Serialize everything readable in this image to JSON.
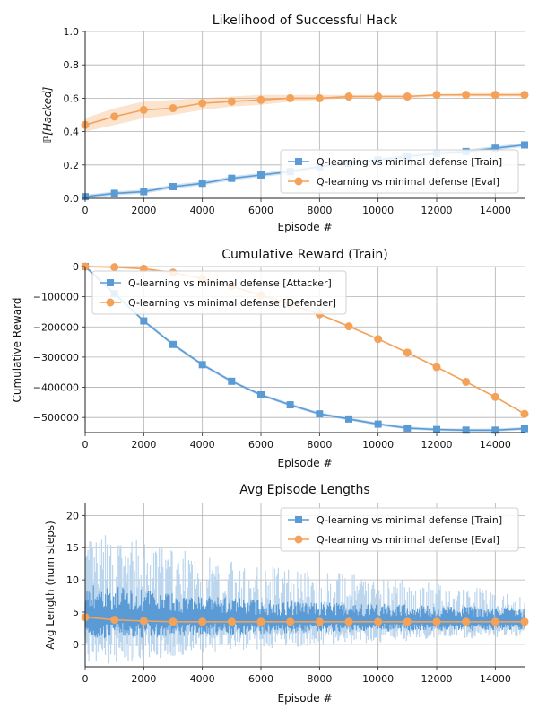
{
  "chart_data": [
    {
      "type": "line",
      "title": "Likelihood of Successful Hack",
      "xlabel": "Episode #",
      "ylabel": "ℙ[Hacked]",
      "xlim": [
        0,
        15000
      ],
      "ylim": [
        0,
        1.0
      ],
      "xticks": [
        "0",
        "2000",
        "4000",
        "6000",
        "8000",
        "10000",
        "12000",
        "14000"
      ],
      "yticks": [
        "0.0",
        "0.2",
        "0.4",
        "0.6",
        "0.8",
        "1.0"
      ],
      "grid": true,
      "legend_position": "lower-right",
      "x": [
        0,
        1000,
        2000,
        3000,
        4000,
        5000,
        6000,
        7000,
        8000,
        9000,
        10000,
        11000,
        12000,
        13000,
        14000,
        15000
      ],
      "series": [
        {
          "name": "Q-learning vs minimal defense [Train]",
          "color": "#5b9bd5",
          "marker": "square",
          "values": [
            0.01,
            0.03,
            0.04,
            0.07,
            0.09,
            0.12,
            0.14,
            0.16,
            0.19,
            0.21,
            0.23,
            0.25,
            0.27,
            0.28,
            0.3,
            0.32
          ],
          "band": 0.012
        },
        {
          "name": "Q-learning vs minimal defense [Eval]",
          "color": "#f4a259",
          "marker": "circle",
          "values": [
            0.44,
            0.49,
            0.53,
            0.54,
            0.57,
            0.58,
            0.59,
            0.6,
            0.6,
            0.61,
            0.61,
            0.61,
            0.62,
            0.62,
            0.62,
            0.62
          ],
          "band_low": [
            0.4,
            0.44,
            0.48,
            0.5,
            0.53,
            0.55,
            0.56,
            0.58,
            0.59,
            0.6,
            0.6,
            0.6,
            0.61,
            0.61,
            0.61,
            0.61
          ],
          "band_high": [
            0.48,
            0.54,
            0.58,
            0.59,
            0.6,
            0.61,
            0.62,
            0.62,
            0.62,
            0.62,
            0.62,
            0.62,
            0.62,
            0.63,
            0.63,
            0.63
          ]
        }
      ]
    },
    {
      "type": "line",
      "title": "Cumulative Reward (Train)",
      "xlabel": "Episode #",
      "ylabel": "Cumulative Reward",
      "xlim": [
        0,
        15000
      ],
      "ylim": [
        -550000,
        0
      ],
      "xticks": [
        "0",
        "2000",
        "4000",
        "6000",
        "8000",
        "10000",
        "12000",
        "14000"
      ],
      "yticks": [
        "0",
        "−100000",
        "−200000",
        "−300000",
        "−400000",
        "−500000"
      ],
      "grid": true,
      "legend_position": "top-left",
      "x": [
        0,
        1000,
        2000,
        3000,
        4000,
        5000,
        6000,
        7000,
        8000,
        9000,
        10000,
        11000,
        12000,
        13000,
        14000,
        15000
      ],
      "series": [
        {
          "name": "Q-learning vs minimal defense [Attacker]",
          "color": "#5b9bd5",
          "marker": "square",
          "values": [
            0,
            -90000,
            -180000,
            -258000,
            -325000,
            -380000,
            -425000,
            -458000,
            -488000,
            -505000,
            -522000,
            -535000,
            -540000,
            -542000,
            -542000,
            -537000
          ],
          "band": 5000
        },
        {
          "name": "Q-learning vs minimal defense [Defender]",
          "color": "#f4a259",
          "marker": "circle",
          "values": [
            0,
            -2000,
            -7000,
            -20000,
            -40000,
            -65000,
            -95000,
            -125000,
            -158000,
            -198000,
            -240000,
            -285000,
            -333000,
            -382000,
            -432000,
            -488000
          ],
          "band": 3000
        }
      ]
    },
    {
      "type": "line",
      "title": "Avg Episode Lengths",
      "xlabel": "Episode #",
      "ylabel": "Avg Length (num steps)",
      "xlim": [
        0,
        15000
      ],
      "ylim": [
        -3.5,
        22
      ],
      "xticks": [
        "0",
        "2000",
        "4000",
        "6000",
        "8000",
        "10000",
        "12000",
        "14000"
      ],
      "yticks": [
        "0",
        "5",
        "10",
        "15",
        "20"
      ],
      "grid": true,
      "legend_position": "top-right",
      "x": [
        0,
        1000,
        2000,
        3000,
        4000,
        5000,
        6000,
        7000,
        8000,
        9000,
        10000,
        11000,
        12000,
        13000,
        14000,
        15000
      ],
      "series": [
        {
          "name": "Q-learning vs minimal defense [Train]",
          "color": "#5b9bd5",
          "marker": "square",
          "noisy": true,
          "mean_values": [
            4.5,
            4.4,
            4.3,
            4.2,
            4.1,
            4.0,
            3.9,
            3.9,
            3.8,
            3.8,
            3.7,
            3.7,
            3.6,
            3.6,
            3.6,
            3.5
          ],
          "inner_high": [
            9.5,
            9.0,
            8.5,
            8.0,
            7.5,
            7.3,
            7.0,
            6.8,
            6.6,
            6.5,
            6.3,
            6.2,
            6.0,
            5.9,
            5.8,
            5.6
          ],
          "inner_low": [
            0.5,
            0.8,
            1.0,
            1.2,
            1.4,
            1.5,
            1.6,
            1.7,
            1.8,
            1.9,
            2.0,
            2.0,
            2.1,
            2.1,
            2.2,
            2.2
          ],
          "outer_high": [
            17,
            17,
            16,
            15,
            14,
            13,
            12.5,
            12,
            11.5,
            11,
            10.5,
            10,
            9.5,
            9,
            8.5,
            7.5
          ],
          "outer_low": [
            -3,
            -3,
            -2.5,
            -2,
            -1.5,
            -1,
            -0.8,
            -0.5,
            -0.3,
            0,
            0.3,
            0.5,
            0.7,
            0.8,
            1,
            1.2
          ]
        },
        {
          "name": "Q-learning vs minimal defense [Eval]",
          "color": "#f4a259",
          "marker": "circle",
          "values": [
            4.2,
            3.8,
            3.6,
            3.5,
            3.5,
            3.5,
            3.5,
            3.5,
            3.5,
            3.5,
            3.5,
            3.5,
            3.5,
            3.5,
            3.5,
            3.5
          ]
        }
      ]
    }
  ]
}
